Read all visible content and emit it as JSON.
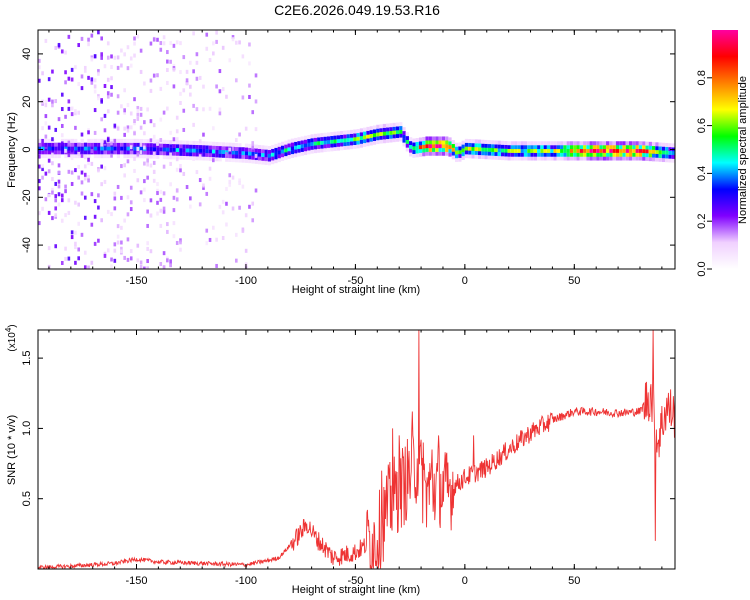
{
  "page_title": "C2E6.2026.049.19.53.R16",
  "chart_data": [
    {
      "type": "heatmap",
      "name": "spectrogram",
      "xlabel": "Height of straight line (km)",
      "ylabel": "Frequency (Hz)",
      "xlim": [
        -195,
        96
      ],
      "ylim": [
        -50,
        50
      ],
      "xticks": [
        -150,
        -100,
        -50,
        0,
        50
      ],
      "yticks": [
        -40,
        -20,
        0,
        20,
        40
      ],
      "colorbar": {
        "label": "Normalized spectral amplitude",
        "range": [
          0,
          1
        ],
        "ticks": [
          0.0,
          0.2,
          0.4,
          0.6,
          0.8
        ],
        "tick_labels": [
          "0.0",
          "0.2",
          "0.4",
          "0.6",
          "0.8"
        ],
        "colormap": [
          "#ffffff",
          "#f0d0ff",
          "#8000ff",
          "#0000ff",
          "#00ffff",
          "#00ff00",
          "#ffff00",
          "#ff8000",
          "#ff0000",
          "#ff00a0"
        ]
      },
      "ridge": [
        {
          "x": -170,
          "f": 0,
          "amp": 0.35
        },
        {
          "x": -150,
          "f": 0,
          "amp": 0.35
        },
        {
          "x": -120,
          "f": -1,
          "amp": 0.4
        },
        {
          "x": -100,
          "f": -2,
          "amp": 0.35
        },
        {
          "x": -90,
          "f": -3,
          "amp": 0.4
        },
        {
          "x": -80,
          "f": 0,
          "amp": 0.45
        },
        {
          "x": -70,
          "f": 2,
          "amp": 0.45
        },
        {
          "x": -60,
          "f": 3,
          "amp": 0.45
        },
        {
          "x": -50,
          "f": 4,
          "amp": 0.55
        },
        {
          "x": -40,
          "f": 6,
          "amp": 0.6
        },
        {
          "x": -30,
          "f": 7,
          "amp": 0.5
        },
        {
          "x": -25,
          "f": 0,
          "amp": 0.4
        },
        {
          "x": -18,
          "f": 1,
          "amp": 0.95
        },
        {
          "x": -8,
          "f": 1,
          "amp": 0.95
        },
        {
          "x": -4,
          "f": -2,
          "amp": 0.5
        },
        {
          "x": 0,
          "f": 0,
          "amp": 0.6
        },
        {
          "x": 20,
          "f": -1,
          "amp": 0.55
        },
        {
          "x": 40,
          "f": -1,
          "amp": 0.6
        },
        {
          "x": 60,
          "f": -1,
          "amp": 0.95
        },
        {
          "x": 80,
          "f": -1,
          "amp": 0.95
        },
        {
          "x": 96,
          "f": -2,
          "amp": 0.4
        }
      ]
    },
    {
      "type": "line",
      "name": "snr",
      "xlabel": "Height of straight line (km)",
      "ylabel": "SNR (10 * v/v)",
      "scale_label": "(x10",
      "scale_exp": "4",
      "scale_close": ")",
      "xlim": [
        -195,
        96
      ],
      "ylim": [
        0,
        1.7
      ],
      "xticks": [
        -150,
        -100,
        -50,
        0,
        50
      ],
      "yticks": [
        0.5,
        1.0,
        1.5
      ],
      "ytick_labels": [
        "0.5",
        "1.0",
        "1.5"
      ],
      "color": "#ee3333",
      "series": [
        {
          "x": -195,
          "y": 0.01
        },
        {
          "x": -180,
          "y": 0.02
        },
        {
          "x": -160,
          "y": 0.04
        },
        {
          "x": -150,
          "y": 0.07
        },
        {
          "x": -140,
          "y": 0.05
        },
        {
          "x": -120,
          "y": 0.04
        },
        {
          "x": -100,
          "y": 0.03
        },
        {
          "x": -90,
          "y": 0.06
        },
        {
          "x": -85,
          "y": 0.08
        },
        {
          "x": -78,
          "y": 0.2
        },
        {
          "x": -72,
          "y": 0.32
        },
        {
          "x": -68,
          "y": 0.22
        },
        {
          "x": -60,
          "y": 0.08
        },
        {
          "x": -50,
          "y": 0.12
        },
        {
          "x": -40,
          "y": 0.22
        },
        {
          "x": -35,
          "y": 0.45
        },
        {
          "x": -28,
          "y": 0.6
        },
        {
          "x": -22,
          "y": 0.75
        },
        {
          "x": -18,
          "y": 0.55
        },
        {
          "x": -12,
          "y": 0.6
        },
        {
          "x": -8,
          "y": 0.55
        },
        {
          "x": 0,
          "y": 0.65
        },
        {
          "x": 10,
          "y": 0.72
        },
        {
          "x": 20,
          "y": 0.85
        },
        {
          "x": 30,
          "y": 0.97
        },
        {
          "x": 40,
          "y": 1.06
        },
        {
          "x": 50,
          "y": 1.12
        },
        {
          "x": 60,
          "y": 1.12
        },
        {
          "x": 70,
          "y": 1.11
        },
        {
          "x": 80,
          "y": 1.12
        },
        {
          "x": 85,
          "y": 1.25
        },
        {
          "x": 88,
          "y": 0.9
        },
        {
          "x": 92,
          "y": 1.15
        },
        {
          "x": 96,
          "y": 1.1
        }
      ],
      "spikes": [
        {
          "x": -44,
          "y": 0.35
        },
        {
          "x": -38,
          "y": 0.7
        },
        {
          "x": -33,
          "y": 1.0
        },
        {
          "x": -30,
          "y": 0.95
        },
        {
          "x": -24,
          "y": 1.12
        },
        {
          "x": -21,
          "y": 1.7
        },
        {
          "x": -19,
          "y": 0.9
        },
        {
          "x": -15,
          "y": 0.85
        },
        {
          "x": -12,
          "y": 0.95
        },
        {
          "x": 4,
          "y": 0.95
        },
        {
          "x": 86,
          "y": 1.7
        },
        {
          "x": 87,
          "y": 0.2
        }
      ]
    }
  ]
}
